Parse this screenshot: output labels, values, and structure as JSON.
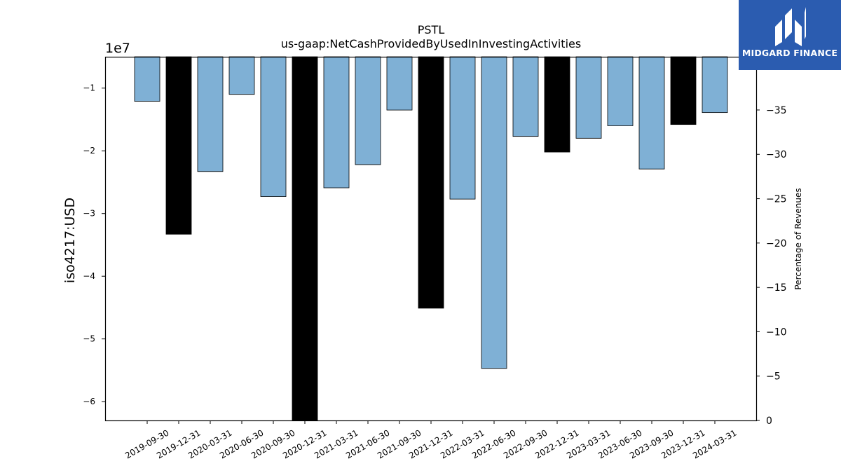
{
  "brand": {
    "name": "MIDGARD FINANCE",
    "color": "#2b5cb0"
  },
  "chart_data": {
    "type": "bar",
    "title": "PSTL",
    "subtitle": "us-gaap:NetCashProvidedByUsedInInvestingActivities",
    "ylabel": "iso4217:USD",
    "y_offset_label": "1e7",
    "y2label": "Percentage of Revenues",
    "categories": [
      "2019-09-30",
      "2019-12-31",
      "2020-03-31",
      "2020-06-30",
      "2020-09-30",
      "2020-12-31",
      "2021-03-31",
      "2021-06-30",
      "2021-09-30",
      "2021-12-31",
      "2022-03-31",
      "2022-06-30",
      "2022-09-30",
      "2022-12-31",
      "2023-03-31",
      "2023-06-30",
      "2023-09-30",
      "2023-12-31",
      "2024-03-31"
    ],
    "values": [
      -12100000,
      -33300000,
      -23300000,
      -11000000,
      -27300000,
      -63000000,
      -25900000,
      -22200000,
      -13500000,
      -45100000,
      -27700000,
      -54700000,
      -17700000,
      -20200000,
      -18000000,
      -16000000,
      -22900000,
      -15800000,
      -13900000
    ],
    "highlight": [
      false,
      true,
      false,
      false,
      false,
      true,
      false,
      false,
      false,
      true,
      false,
      false,
      false,
      true,
      false,
      false,
      false,
      true,
      false
    ],
    "colors": {
      "regular": "#7fb0d5",
      "highlight": "#000000"
    },
    "ylim": [
      -63000000,
      -5000000
    ],
    "yticks": [
      -10000000,
      -20000000,
      -30000000,
      -40000000,
      -50000000,
      -60000000
    ],
    "yticklabels": [
      "−1",
      "−2",
      "−3",
      "−4",
      "−5",
      "−6"
    ],
    "y2lim": [
      0,
      41
    ],
    "y2ticks": [
      0,
      5,
      10,
      15,
      20,
      25,
      30,
      35
    ],
    "y2ticklabels": [
      "0",
      "−5",
      "−10",
      "−15",
      "−20",
      "−25",
      "−30",
      "−35"
    ],
    "grid": false,
    "legend": "none"
  }
}
